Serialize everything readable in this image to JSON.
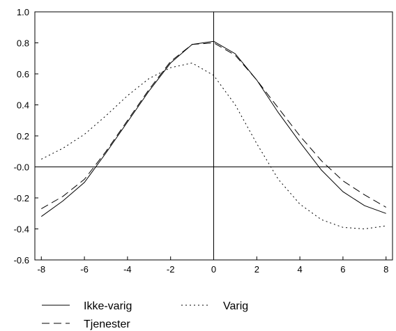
{
  "chart_data": {
    "type": "line",
    "title": "",
    "xlabel": "",
    "ylabel": "",
    "xlim": [
      -8.3,
      8.3
    ],
    "ylim": [
      -0.6,
      1.0
    ],
    "grid": false,
    "reference_lines": {
      "x": 0,
      "y": 0
    },
    "legend_position": "bottom-left",
    "x_ticks": [
      -8,
      -6,
      -4,
      -2,
      0,
      2,
      4,
      6,
      8
    ],
    "x_tick_labels": [
      "-8",
      "-6",
      "-4",
      "-2",
      "0",
      "2",
      "4",
      "6",
      "8"
    ],
    "y_ticks": [
      1.0,
      0.8,
      0.6,
      0.4,
      0.2,
      0.0,
      -0.2,
      -0.4,
      -0.6
    ],
    "y_tick_labels": [
      "1.0",
      "0.8",
      "0.6",
      "0.4",
      "0.2",
      "-0.0",
      "-0.2",
      "-0.4",
      "-0.6"
    ],
    "x": [
      -8,
      -7,
      -6,
      -5,
      -4,
      -3,
      -2,
      -1,
      0,
      1,
      2,
      3,
      4,
      5,
      6,
      7,
      8
    ],
    "series": [
      {
        "name": "Ikke-varig",
        "style": "solid",
        "color": "#000000",
        "values": [
          -0.32,
          -0.22,
          -0.1,
          0.09,
          0.29,
          0.49,
          0.67,
          0.79,
          0.81,
          0.73,
          0.56,
          0.35,
          0.16,
          -0.02,
          -0.16,
          -0.25,
          -0.3
        ]
      },
      {
        "name": "Varig",
        "style": "dotted",
        "color": "#000000",
        "values": [
          0.05,
          0.12,
          0.21,
          0.33,
          0.46,
          0.57,
          0.64,
          0.67,
          0.59,
          0.4,
          0.15,
          -0.08,
          -0.24,
          -0.34,
          -0.39,
          -0.4,
          -0.38
        ]
      },
      {
        "name": "Tjenester",
        "style": "dashed",
        "color": "#000000",
        "values": [
          -0.27,
          -0.19,
          -0.08,
          0.1,
          0.3,
          0.5,
          0.68,
          0.79,
          0.8,
          0.72,
          0.56,
          0.38,
          0.2,
          0.04,
          -0.09,
          -0.18,
          -0.26
        ]
      }
    ]
  }
}
